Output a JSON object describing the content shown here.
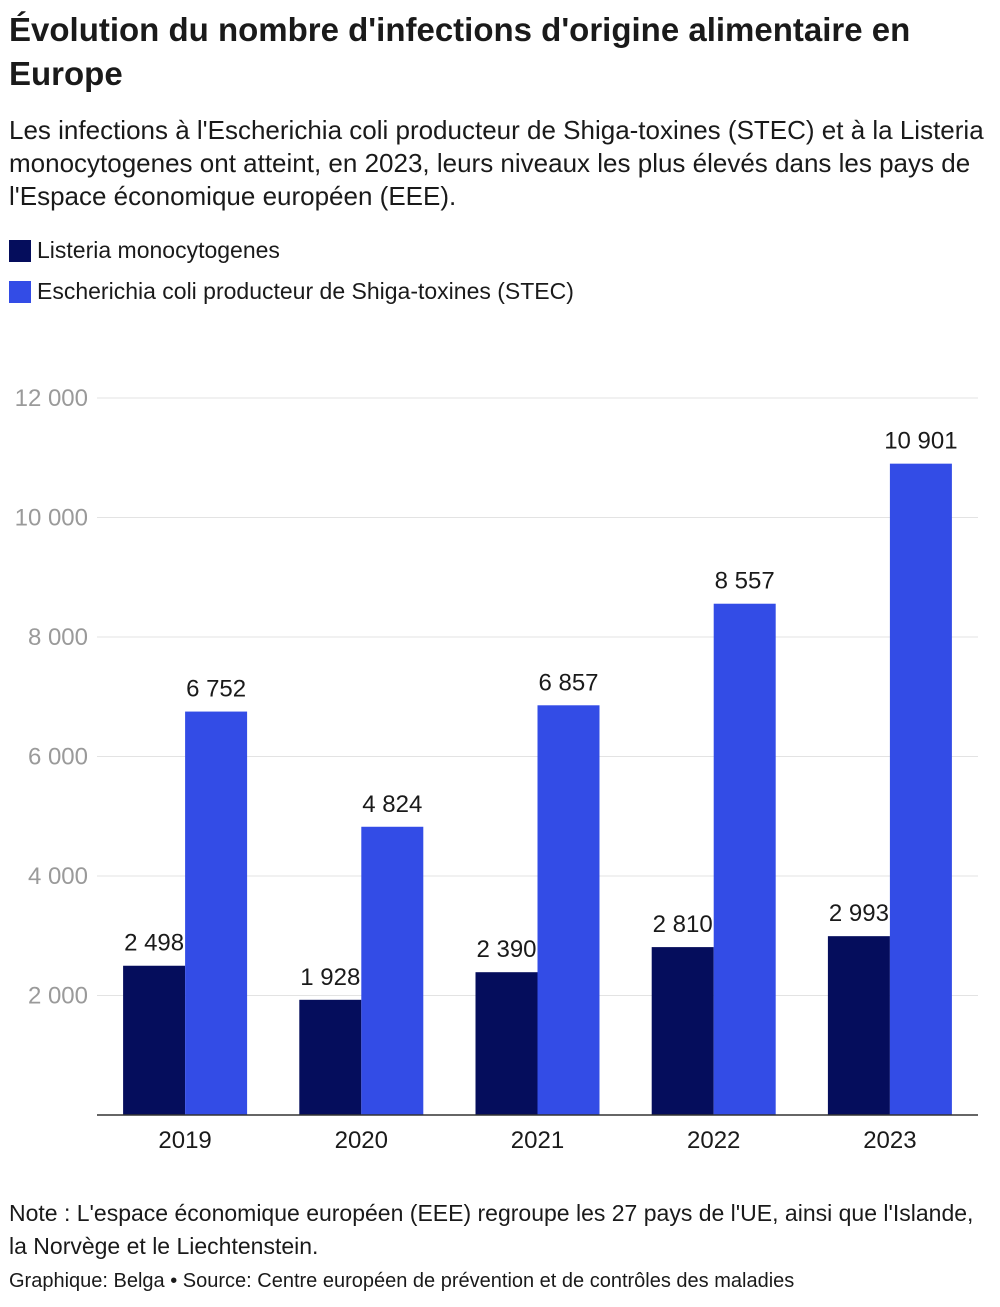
{
  "title": "Évolution du nombre d'infections d'origine alimentaire en Europe",
  "subtitle": "Les infections à l'Escherichia coli producteur de Shiga-toxines (STEC) et à la Listeria monocytogenes ont atteint, en 2023, leurs niveaux les plus élevés dans les pays de l'Espace économique européen (EEE).",
  "legend": [
    {
      "label": "Listeria monocytogenes",
      "color": "#050d5c"
    },
    {
      "label": "Escherichia coli producteur de Shiga-toxines (STEC)",
      "color": "#334ce6"
    }
  ],
  "chart_data": {
    "type": "bar",
    "categories": [
      "2019",
      "2020",
      "2021",
      "2022",
      "2023"
    ],
    "series": [
      {
        "name": "Listeria monocytogenes",
        "values": [
          2498,
          1928,
          2390,
          2810,
          2993
        ],
        "labels": [
          "2 498",
          "1 928",
          "2 390",
          "2 810",
          "2 993"
        ],
        "color": "#050d5c"
      },
      {
        "name": "Escherichia coli producteur de Shiga-toxines (STEC)",
        "values": [
          6752,
          4824,
          6857,
          8557,
          10901
        ],
        "labels": [
          "6 752",
          "4 824",
          "6 857",
          "8 557",
          "10 901"
        ],
        "color": "#334ce6"
      }
    ],
    "ylim": [
      0,
      12000
    ],
    "yticks": [
      2000,
      4000,
      6000,
      8000,
      10000,
      12000
    ],
    "ytick_labels": [
      "2 000",
      "4 000",
      "6 000",
      "8 000",
      "10 000",
      "12 000"
    ],
    "grid": true,
    "legend_position": "top-left"
  },
  "note": "Note : L'espace économique européen (EEE) regroupe les 27 pays de l'UE, ainsi que l'Islande, la Norvège et le Liechtenstein.",
  "source": "Graphique: Belga • Source: Centre européen de prévention et de contrôles des maladies"
}
